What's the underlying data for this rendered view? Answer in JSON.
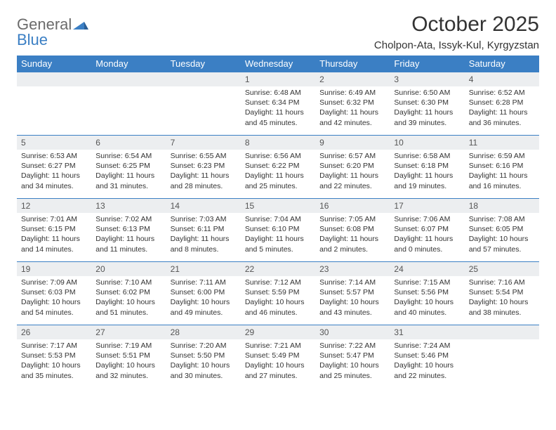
{
  "logo": {
    "word1": "General",
    "word2": "Blue"
  },
  "title": "October 2025",
  "location": "Cholpon-Ata, Issyk-Kul, Kyrgyzstan",
  "colors": {
    "brand_blue": "#3b7fc4",
    "header_gray": "#eceef0",
    "text": "#333333",
    "logo_gray": "#6b6b6b",
    "background": "#ffffff"
  },
  "weekdays": [
    "Sunday",
    "Monday",
    "Tuesday",
    "Wednesday",
    "Thursday",
    "Friday",
    "Saturday"
  ],
  "weeks": [
    [
      {
        "day": ""
      },
      {
        "day": ""
      },
      {
        "day": ""
      },
      {
        "day": "1",
        "sunrise": "Sunrise: 6:48 AM",
        "sunset": "Sunset: 6:34 PM",
        "daylight1": "Daylight: 11 hours",
        "daylight2": "and 45 minutes."
      },
      {
        "day": "2",
        "sunrise": "Sunrise: 6:49 AM",
        "sunset": "Sunset: 6:32 PM",
        "daylight1": "Daylight: 11 hours",
        "daylight2": "and 42 minutes."
      },
      {
        "day": "3",
        "sunrise": "Sunrise: 6:50 AM",
        "sunset": "Sunset: 6:30 PM",
        "daylight1": "Daylight: 11 hours",
        "daylight2": "and 39 minutes."
      },
      {
        "day": "4",
        "sunrise": "Sunrise: 6:52 AM",
        "sunset": "Sunset: 6:28 PM",
        "daylight1": "Daylight: 11 hours",
        "daylight2": "and 36 minutes."
      }
    ],
    [
      {
        "day": "5",
        "sunrise": "Sunrise: 6:53 AM",
        "sunset": "Sunset: 6:27 PM",
        "daylight1": "Daylight: 11 hours",
        "daylight2": "and 34 minutes."
      },
      {
        "day": "6",
        "sunrise": "Sunrise: 6:54 AM",
        "sunset": "Sunset: 6:25 PM",
        "daylight1": "Daylight: 11 hours",
        "daylight2": "and 31 minutes."
      },
      {
        "day": "7",
        "sunrise": "Sunrise: 6:55 AM",
        "sunset": "Sunset: 6:23 PM",
        "daylight1": "Daylight: 11 hours",
        "daylight2": "and 28 minutes."
      },
      {
        "day": "8",
        "sunrise": "Sunrise: 6:56 AM",
        "sunset": "Sunset: 6:22 PM",
        "daylight1": "Daylight: 11 hours",
        "daylight2": "and 25 minutes."
      },
      {
        "day": "9",
        "sunrise": "Sunrise: 6:57 AM",
        "sunset": "Sunset: 6:20 PM",
        "daylight1": "Daylight: 11 hours",
        "daylight2": "and 22 minutes."
      },
      {
        "day": "10",
        "sunrise": "Sunrise: 6:58 AM",
        "sunset": "Sunset: 6:18 PM",
        "daylight1": "Daylight: 11 hours",
        "daylight2": "and 19 minutes."
      },
      {
        "day": "11",
        "sunrise": "Sunrise: 6:59 AM",
        "sunset": "Sunset: 6:16 PM",
        "daylight1": "Daylight: 11 hours",
        "daylight2": "and 16 minutes."
      }
    ],
    [
      {
        "day": "12",
        "sunrise": "Sunrise: 7:01 AM",
        "sunset": "Sunset: 6:15 PM",
        "daylight1": "Daylight: 11 hours",
        "daylight2": "and 14 minutes."
      },
      {
        "day": "13",
        "sunrise": "Sunrise: 7:02 AM",
        "sunset": "Sunset: 6:13 PM",
        "daylight1": "Daylight: 11 hours",
        "daylight2": "and 11 minutes."
      },
      {
        "day": "14",
        "sunrise": "Sunrise: 7:03 AM",
        "sunset": "Sunset: 6:11 PM",
        "daylight1": "Daylight: 11 hours",
        "daylight2": "and 8 minutes."
      },
      {
        "day": "15",
        "sunrise": "Sunrise: 7:04 AM",
        "sunset": "Sunset: 6:10 PM",
        "daylight1": "Daylight: 11 hours",
        "daylight2": "and 5 minutes."
      },
      {
        "day": "16",
        "sunrise": "Sunrise: 7:05 AM",
        "sunset": "Sunset: 6:08 PM",
        "daylight1": "Daylight: 11 hours",
        "daylight2": "and 2 minutes."
      },
      {
        "day": "17",
        "sunrise": "Sunrise: 7:06 AM",
        "sunset": "Sunset: 6:07 PM",
        "daylight1": "Daylight: 11 hours",
        "daylight2": "and 0 minutes."
      },
      {
        "day": "18",
        "sunrise": "Sunrise: 7:08 AM",
        "sunset": "Sunset: 6:05 PM",
        "daylight1": "Daylight: 10 hours",
        "daylight2": "and 57 minutes."
      }
    ],
    [
      {
        "day": "19",
        "sunrise": "Sunrise: 7:09 AM",
        "sunset": "Sunset: 6:03 PM",
        "daylight1": "Daylight: 10 hours",
        "daylight2": "and 54 minutes."
      },
      {
        "day": "20",
        "sunrise": "Sunrise: 7:10 AM",
        "sunset": "Sunset: 6:02 PM",
        "daylight1": "Daylight: 10 hours",
        "daylight2": "and 51 minutes."
      },
      {
        "day": "21",
        "sunrise": "Sunrise: 7:11 AM",
        "sunset": "Sunset: 6:00 PM",
        "daylight1": "Daylight: 10 hours",
        "daylight2": "and 49 minutes."
      },
      {
        "day": "22",
        "sunrise": "Sunrise: 7:12 AM",
        "sunset": "Sunset: 5:59 PM",
        "daylight1": "Daylight: 10 hours",
        "daylight2": "and 46 minutes."
      },
      {
        "day": "23",
        "sunrise": "Sunrise: 7:14 AM",
        "sunset": "Sunset: 5:57 PM",
        "daylight1": "Daylight: 10 hours",
        "daylight2": "and 43 minutes."
      },
      {
        "day": "24",
        "sunrise": "Sunrise: 7:15 AM",
        "sunset": "Sunset: 5:56 PM",
        "daylight1": "Daylight: 10 hours",
        "daylight2": "and 40 minutes."
      },
      {
        "day": "25",
        "sunrise": "Sunrise: 7:16 AM",
        "sunset": "Sunset: 5:54 PM",
        "daylight1": "Daylight: 10 hours",
        "daylight2": "and 38 minutes."
      }
    ],
    [
      {
        "day": "26",
        "sunrise": "Sunrise: 7:17 AM",
        "sunset": "Sunset: 5:53 PM",
        "daylight1": "Daylight: 10 hours",
        "daylight2": "and 35 minutes."
      },
      {
        "day": "27",
        "sunrise": "Sunrise: 7:19 AM",
        "sunset": "Sunset: 5:51 PM",
        "daylight1": "Daylight: 10 hours",
        "daylight2": "and 32 minutes."
      },
      {
        "day": "28",
        "sunrise": "Sunrise: 7:20 AM",
        "sunset": "Sunset: 5:50 PM",
        "daylight1": "Daylight: 10 hours",
        "daylight2": "and 30 minutes."
      },
      {
        "day": "29",
        "sunrise": "Sunrise: 7:21 AM",
        "sunset": "Sunset: 5:49 PM",
        "daylight1": "Daylight: 10 hours",
        "daylight2": "and 27 minutes."
      },
      {
        "day": "30",
        "sunrise": "Sunrise: 7:22 AM",
        "sunset": "Sunset: 5:47 PM",
        "daylight1": "Daylight: 10 hours",
        "daylight2": "and 25 minutes."
      },
      {
        "day": "31",
        "sunrise": "Sunrise: 7:24 AM",
        "sunset": "Sunset: 5:46 PM",
        "daylight1": "Daylight: 10 hours",
        "daylight2": "and 22 minutes."
      },
      {
        "day": ""
      }
    ]
  ]
}
